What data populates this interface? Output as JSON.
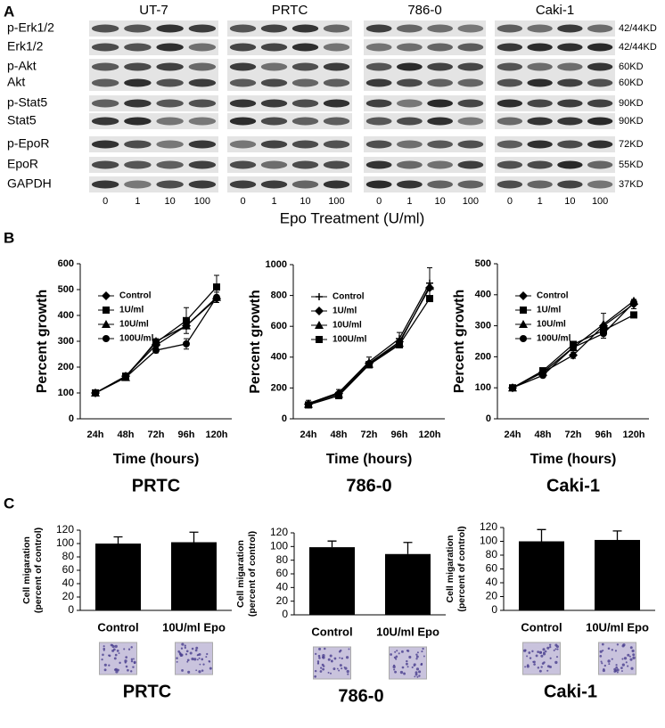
{
  "panel_labels": [
    "A",
    "B",
    "C"
  ],
  "blot": {
    "groups": [
      "UT-7",
      "PRTC",
      "786-0",
      "Caki-1"
    ],
    "rows": [
      "p-Erk1/2",
      "Erk1/2",
      "p-Akt",
      "Akt",
      "p-Stat5",
      "Stat5",
      "p-EpoR",
      "EpoR",
      "GAPDH"
    ],
    "sizes": [
      "42/44KD",
      "42/44KD",
      "60KD",
      "60KD",
      "90KD",
      "90KD",
      "72KD",
      "55KD",
      "37KD"
    ],
    "doses": [
      "0",
      "1",
      "10",
      "100"
    ],
    "xlabel": "Epo Treatment (U/ml)"
  },
  "chart_data": [
    {
      "type": "line",
      "title": "PRTC",
      "xlabel": "Time (hours)",
      "ylabel": "Percent growth",
      "categories": [
        "24h",
        "48h",
        "72h",
        "96h",
        "120h"
      ],
      "ylim": [
        0,
        600
      ],
      "yticks": [
        0,
        100,
        200,
        300,
        400,
        500,
        600
      ],
      "legend": "upper left",
      "color": "#000000",
      "series": [
        {
          "name": "Control",
          "marker": "diamond",
          "values": [
            100,
            165,
            285,
            360,
            465
          ]
        },
        {
          "name": "1U/ml",
          "marker": "square",
          "values": [
            100,
            165,
            295,
            380,
            510
          ],
          "errors": [
            5,
            10,
            15,
            50,
            45
          ]
        },
        {
          "name": "10U/ml",
          "marker": "triangle",
          "values": [
            100,
            160,
            300,
            360,
            470
          ]
        },
        {
          "name": "100U/ml",
          "marker": "circle",
          "values": [
            100,
            160,
            265,
            290,
            470
          ],
          "errors": [
            5,
            8,
            10,
            20,
            20
          ]
        }
      ]
    },
    {
      "type": "line",
      "title": "786-0",
      "xlabel": "Time (hours)",
      "ylabel": "Percent growth",
      "categories": [
        "24h",
        "48h",
        "72h",
        "96h",
        "120h"
      ],
      "ylim": [
        0,
        1000
      ],
      "yticks": [
        0,
        200,
        400,
        600,
        800,
        1000
      ],
      "legend": "upper left",
      "color": "#000000",
      "series": [
        {
          "name": "Control",
          "marker": "plus",
          "values": [
            100,
            170,
            370,
            520,
            880
          ],
          "errors": [
            20,
            20,
            30,
            40,
            100
          ]
        },
        {
          "name": "1U/ml",
          "marker": "diamond",
          "values": [
            95,
            165,
            360,
            500,
            850
          ]
        },
        {
          "name": "10U/ml",
          "marker": "triangle",
          "values": [
            95,
            160,
            355,
            490,
            860
          ]
        },
        {
          "name": "100U/ml",
          "marker": "square",
          "values": [
            90,
            150,
            350,
            480,
            780
          ]
        }
      ]
    },
    {
      "type": "line",
      "title": "Caki-1",
      "xlabel": "Time (hours)",
      "ylabel": "Percent growth",
      "categories": [
        "24h",
        "48h",
        "72h",
        "96h",
        "120h"
      ],
      "ylim": [
        0,
        500
      ],
      "yticks": [
        0,
        100,
        200,
        300,
        400,
        500
      ],
      "legend": "upper left",
      "color": "#000000",
      "series": [
        {
          "name": "Control",
          "marker": "diamond",
          "values": [
            100,
            150,
            205,
            300,
            370
          ],
          "errors": [
            5,
            10,
            10,
            40,
            15
          ]
        },
        {
          "name": "1U/ml",
          "marker": "square",
          "values": [
            100,
            155,
            240,
            285,
            335
          ]
        },
        {
          "name": "10U/ml",
          "marker": "triangle",
          "values": [
            100,
            150,
            230,
            305,
            380
          ]
        },
        {
          "name": "100U/ml",
          "marker": "circle",
          "values": [
            100,
            140,
            230,
            275,
            375
          ]
        }
      ]
    },
    {
      "type": "bar",
      "title": "PRTC",
      "ylabel": [
        "Cell migaration",
        "(percent of control)"
      ],
      "categories": [
        "Control",
        "10U/ml Epo"
      ],
      "values": [
        100,
        102
      ],
      "errors": [
        10,
        15
      ],
      "color": "#000000",
      "ylim": [
        0,
        120
      ],
      "yticks": [
        0,
        20,
        40,
        60,
        80,
        100,
        120
      ]
    },
    {
      "type": "bar",
      "title": "786-0",
      "ylabel": [
        "Cell migaration",
        "(percent of control)"
      ],
      "categories": [
        "Control",
        "10U/ml Epo"
      ],
      "values": [
        99,
        89
      ],
      "errors": [
        9,
        17
      ],
      "color": "#000000",
      "ylim": [
        0,
        120
      ],
      "yticks": [
        0,
        20,
        40,
        60,
        80,
        100,
        120
      ]
    },
    {
      "type": "bar",
      "title": "Caki-1",
      "ylabel": [
        "Cell migaration",
        "(percent of control)"
      ],
      "categories": [
        "Control",
        "10U/ml Epo"
      ],
      "values": [
        100,
        102
      ],
      "errors": [
        17,
        13
      ],
      "color": "#000000",
      "ylim": [
        0,
        120
      ],
      "yticks": [
        0,
        20,
        40,
        60,
        80,
        100,
        120
      ]
    }
  ]
}
